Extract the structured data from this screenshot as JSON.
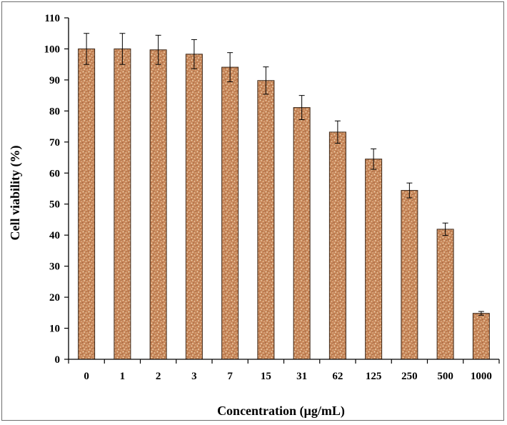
{
  "chart_data": {
    "type": "bar",
    "title": "",
    "xlabel": "Concentration (µg/mL)",
    "ylabel": "Cell viability (%)",
    "categories": [
      "0",
      "1",
      "2",
      "3",
      "7",
      "15",
      "31",
      "62",
      "125",
      "250",
      "500",
      "1000"
    ],
    "values": [
      100,
      100,
      99.7,
      98.3,
      94.1,
      89.8,
      81.1,
      73.2,
      64.5,
      54.4,
      41.9,
      14.8
    ],
    "errors": [
      5.0,
      5.0,
      4.7,
      4.7,
      4.7,
      4.4,
      3.9,
      3.6,
      3.3,
      2.4,
      2.0,
      0.6
    ],
    "ylim": [
      0,
      110
    ],
    "yticks": [
      "0",
      "10",
      "20",
      "30",
      "40",
      "50",
      "60",
      "70",
      "80",
      "90",
      "100",
      "110"
    ],
    "grid": false,
    "legend": "none",
    "bar_color": "#c8875a",
    "bar_pattern_color": "#f3dcb8",
    "bar_edge_color": "#3a2414"
  }
}
